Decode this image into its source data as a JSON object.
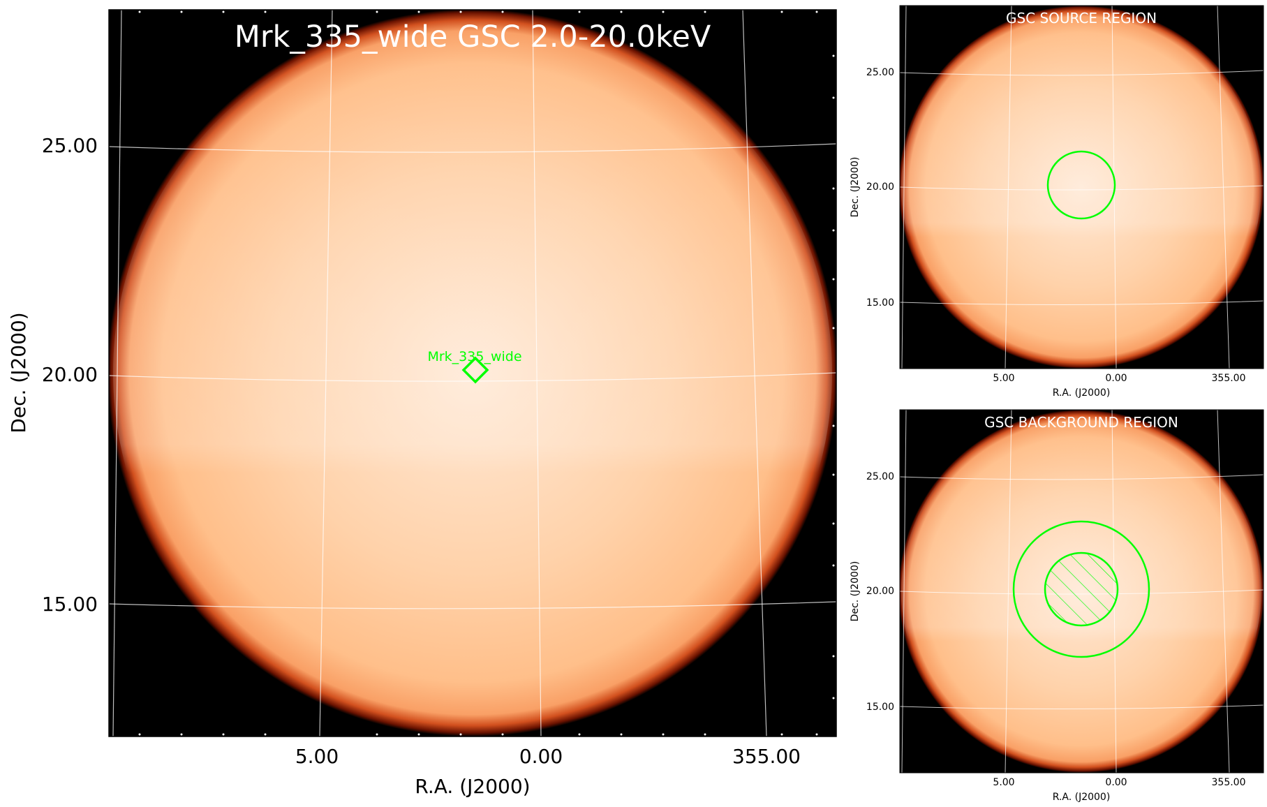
{
  "main_panel": {
    "title": "Mrk_335_wide GSC 2.0-20.0keV",
    "xlabel": "R.A. (J2000)",
    "ylabel": "Dec. (J2000)",
    "x_ticks": [
      "5.00",
      "0.00",
      "355.00"
    ],
    "y_ticks": [
      "25.00",
      "20.00",
      "15.00"
    ],
    "source_label": "Mrk_335_wide",
    "marker_color": "#00ff00"
  },
  "source_panel": {
    "title": "GSC SOURCE REGION",
    "xlabel": "R.A. (J2000)",
    "ylabel": "Dec. (J2000)",
    "x_ticks": [
      "5.00",
      "0.00",
      "355.00"
    ],
    "y_ticks": [
      "25.00",
      "20.00",
      "15.00"
    ]
  },
  "background_panel": {
    "title": "GSC BACKGROUND REGION",
    "xlabel": "R.A. (J2000)",
    "ylabel": "Dec. (J2000)",
    "x_ticks": [
      "5.00",
      "0.00",
      "355.00"
    ],
    "y_ticks": [
      "25.00",
      "20.00",
      "15.00"
    ]
  },
  "colors": {
    "sky_background": "#000000",
    "disk_fill": "#ffc08e",
    "region_color": "#00ff00",
    "grid_color": "#ffffff"
  }
}
